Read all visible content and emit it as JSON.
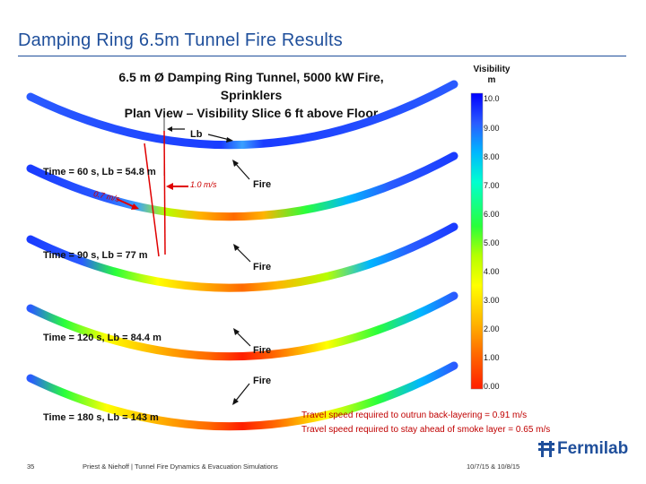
{
  "slide": {
    "title": "Damping Ring 6.5m Tunnel Fire Results",
    "number": "35",
    "footer_center": "Priest & Niehoff | Tunnel Fire Dynamics & Evacuation Simulations",
    "footer_right": "10/7/15 & 10/8/15",
    "brand": "Fermilab"
  },
  "figure": {
    "title_line1": "6.5 m Ø Damping Ring Tunnel, 5000 kW Fire, Sprinklers",
    "title_line2": "Plan View – Visibility Slice 6 ft above Floor",
    "lb_label": "Lb",
    "speed_left": "0.7 m/s",
    "speed_right": "1.0 m/s",
    "fire_label": "Fire",
    "times": [
      "Time = 60 s, Lb = 54.8 m",
      "Time = 90 s, Lb = 77 m",
      "Time = 120 s, Lb = 84.4 m",
      "Time = 180 s, Lb = 143 m"
    ]
  },
  "legend": {
    "title_line1": "Visibility",
    "title_line2": "m",
    "ticks": [
      "10.0",
      "9.00",
      "8.00",
      "7.00",
      "6.00",
      "5.00",
      "4.00",
      "3.00",
      "2.00",
      "1.00",
      "0.00"
    ],
    "colors": [
      "#0000ff",
      "#2a5bff",
      "#00b7ff",
      "#00ffd0",
      "#29ff3a",
      "#b6ff00",
      "#ffff00",
      "#ffb300",
      "#ff6a00",
      "#ff1e00"
    ]
  },
  "notes": {
    "line1": "Travel speed required to outrun back-layering = 0.91 m/s",
    "line2": "Travel speed required to stay ahead of smoke layer = 0.65 m/s"
  }
}
